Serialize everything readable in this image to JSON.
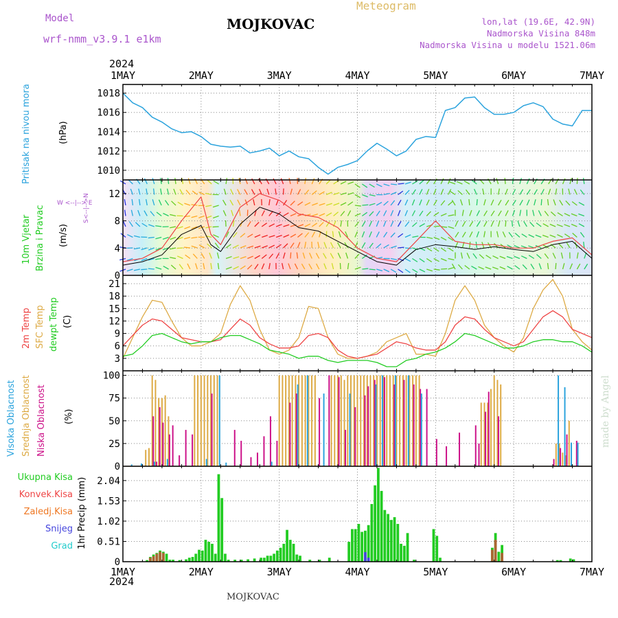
{
  "header": {
    "model_label": "Model",
    "model_name": "wrf-nmm_v3.9.1 e1km",
    "station": "MOJKOVAC",
    "meteogram_label": "Meteogram",
    "lonlat": "lon,lat (19.6E, 42.9N)",
    "altitude": "Nadmorska Visina 848m",
    "altitude_model": "Nadmorska Visina u modelu 1521.06m",
    "footer_station": "MOJKOVAC",
    "watermark": "made by Angel",
    "year_top": "2024",
    "year_bottom": "2024"
  },
  "colors": {
    "pressure": "#2ba3dd",
    "wind_title": "#22cc22",
    "temp2m": "#ee4444",
    "sfc": "#ddaa44",
    "dewpt": "#22cc22",
    "high_cloud": "#2ba3dd",
    "mid_cloud": "#ddaa44",
    "low_cloud": "#cc1188",
    "total_precip": "#22cc22",
    "conv_precip": "#ee4444",
    "freezing": "#ee7722",
    "snow": "#4444dd",
    "hail": "#22cccc",
    "purple": "#aa55cc"
  },
  "chart_data": [
    {
      "type": "line",
      "name": "pressure",
      "ylabel_main": "Pritisak na nivou mora",
      "ylabel_unit": "(hPa)",
      "x_ticks": [
        "1MAY",
        "2MAY",
        "3MAY",
        "4MAY",
        "5MAY",
        "6MAY",
        "7MAY"
      ],
      "y_ticks": [
        1010,
        1012,
        1014,
        1016,
        1018
      ],
      "ylim": [
        1009,
        1018.9
      ],
      "grid": true,
      "x_hours": [
        0,
        3,
        6,
        9,
        12,
        15,
        18,
        21,
        24,
        27,
        30,
        33,
        36,
        39,
        42,
        45,
        48,
        51,
        54,
        57,
        60,
        63,
        66,
        69,
        72,
        75,
        78,
        81,
        84,
        87,
        90,
        93,
        96,
        99,
        102,
        105,
        108,
        111,
        114,
        117,
        120,
        123,
        126,
        129,
        132,
        135,
        138,
        141,
        144
      ],
      "values": [
        1018,
        1017,
        1016.5,
        1015.5,
        1015,
        1014.3,
        1013.9,
        1014,
        1013.5,
        1012.7,
        1012.5,
        1012.4,
        1012.5,
        1011.8,
        1012,
        1012.3,
        1011.5,
        1012,
        1011.4,
        1011.2,
        1010.3,
        1009.6,
        1010.3,
        1010.6,
        1011,
        1012,
        1012.8,
        1012.2,
        1011.5,
        1012,
        1013.2,
        1013.5,
        1013.4,
        1016.2,
        1016.5,
        1017.5,
        1017.6,
        1016.5,
        1015.8,
        1015.8,
        1016,
        1016.7,
        1017,
        1016.6,
        1015.3,
        1014.8,
        1014.6,
        1016.2,
        1016.2
      ]
    },
    {
      "type": "line",
      "name": "wind",
      "ylabel_main": "10m Vjetar",
      "ylabel_sub": "Brzina i Pravac",
      "ylabel_unit": "(m/s)",
      "compass": "W <--|--> E",
      "compass_ns": "S<--|-->N",
      "y_ticks": [
        0,
        4,
        8,
        12
      ],
      "ylim": [
        0,
        14
      ],
      "x_hours": [
        0,
        6,
        12,
        18,
        24,
        27,
        30,
        36,
        42,
        48,
        54,
        60,
        66,
        72,
        78,
        84,
        90,
        96,
        102,
        108,
        114,
        120,
        126,
        132,
        138,
        144
      ],
      "speed": [
        1.5,
        2,
        3,
        6,
        7.3,
        4.5,
        3.5,
        7.5,
        10,
        9,
        7,
        6.5,
        5,
        3.5,
        2,
        1.5,
        3.8,
        4.5,
        4.2,
        3.8,
        4.2,
        3.8,
        3.5,
        4.5,
        5,
        2.5
      ],
      "gust": [
        2,
        2.5,
        4,
        8,
        11.5,
        6,
        4.5,
        10,
        12,
        11,
        9,
        8.5,
        7,
        4,
        2.5,
        2,
        5,
        8,
        5,
        4.5,
        4.5,
        4,
        4,
        5,
        5.5,
        3
      ]
    },
    {
      "type": "line",
      "name": "temperature",
      "ylabel_lines": [
        "2m Temp",
        "SFC Temp",
        "dewpt Temp"
      ],
      "ylabel_unit": "(C)",
      "y_ticks": [
        3,
        6,
        9,
        12,
        15,
        18,
        21
      ],
      "ylim": [
        0,
        23
      ],
      "x_hours": [
        0,
        3,
        6,
        9,
        12,
        15,
        18,
        21,
        24,
        27,
        30,
        33,
        36,
        39,
        42,
        45,
        48,
        51,
        54,
        57,
        60,
        63,
        66,
        69,
        72,
        75,
        78,
        81,
        84,
        87,
        90,
        93,
        96,
        99,
        102,
        105,
        108,
        111,
        114,
        117,
        120,
        123,
        126,
        129,
        132,
        135,
        138,
        141,
        144
      ],
      "temp2m": [
        6,
        8.5,
        11,
        12.5,
        12,
        10,
        8,
        7.5,
        7,
        7,
        7.5,
        10,
        12.5,
        11,
        8,
        6.5,
        5.5,
        5.5,
        6,
        8.5,
        9,
        8,
        5,
        3.5,
        3,
        3.5,
        4,
        5.5,
        7,
        6.5,
        5.5,
        5,
        5,
        7,
        11,
        13,
        12.5,
        10,
        8,
        7,
        6,
        7,
        10,
        13,
        14.5,
        13,
        10,
        9,
        8
      ],
      "sfc": [
        3,
        8,
        13,
        17,
        16.5,
        12,
        8,
        6,
        6,
        7,
        9,
        16,
        20.5,
        17,
        10,
        5,
        4,
        5,
        8,
        15.5,
        15,
        8,
        4,
        3,
        3,
        3.5,
        4.5,
        7,
        8,
        9,
        4,
        4,
        3.5,
        9,
        17,
        20.5,
        17,
        11,
        8,
        6,
        4.5,
        8,
        15,
        19.5,
        22,
        18,
        10,
        7,
        5
      ],
      "dewpt": [
        3.5,
        4,
        6,
        8.5,
        9,
        8,
        7,
        6.5,
        7,
        7,
        8,
        8.5,
        8.5,
        7.5,
        6.5,
        5,
        4.5,
        4,
        3,
        3.5,
        3.5,
        2.5,
        2,
        2.5,
        2.5,
        2.5,
        2,
        1,
        1,
        2.5,
        3,
        4,
        4.5,
        5.5,
        7,
        9,
        8.5,
        7.5,
        6.5,
        5.5,
        5.5,
        6,
        7,
        7.5,
        7.5,
        7,
        7,
        6,
        4.5
      ]
    },
    {
      "type": "bar",
      "name": "clouds",
      "ylabel_lines": [
        "Visoka Oblacnost",
        "Srednja Oblacnost",
        "Niska Oblacnost"
      ],
      "ylabel_unit": "(%)",
      "y_ticks": [
        0,
        25,
        50,
        75,
        100
      ],
      "ylim": [
        0,
        105
      ],
      "bar_width_hours": 0.8,
      "high": [
        [
          3,
          2
        ],
        [
          6,
          3
        ],
        [
          10,
          5
        ],
        [
          14,
          8
        ],
        [
          26,
          8
        ],
        [
          30,
          100
        ],
        [
          32,
          4
        ],
        [
          46,
          5
        ],
        [
          54,
          90
        ],
        [
          57,
          100
        ],
        [
          62,
          80
        ],
        [
          70,
          80
        ],
        [
          78,
          90
        ],
        [
          80,
          100
        ],
        [
          84,
          100
        ],
        [
          88,
          100
        ],
        [
          92,
          80
        ],
        [
          134,
          100
        ],
        [
          136,
          87
        ],
        [
          138,
          26
        ],
        [
          140,
          26
        ]
      ],
      "mid": [
        [
          7,
          18
        ],
        [
          8,
          20
        ],
        [
          9,
          100
        ],
        [
          10,
          95
        ],
        [
          11,
          75
        ],
        [
          12,
          75
        ],
        [
          13,
          78
        ],
        [
          14,
          55
        ],
        [
          22,
          100
        ],
        [
          23,
          100
        ],
        [
          24,
          100
        ],
        [
          25,
          100
        ],
        [
          26,
          100
        ],
        [
          27,
          100
        ],
        [
          28,
          100
        ],
        [
          29,
          100
        ],
        [
          48,
          100
        ],
        [
          49,
          100
        ],
        [
          50,
          100
        ],
        [
          51,
          100
        ],
        [
          52,
          100
        ],
        [
          53,
          100
        ],
        [
          54,
          100
        ],
        [
          55,
          100
        ],
        [
          56,
          100
        ],
        [
          57,
          100
        ],
        [
          58,
          100
        ],
        [
          59,
          100
        ],
        [
          64,
          100
        ],
        [
          65,
          100
        ],
        [
          66,
          100
        ],
        [
          67,
          100
        ],
        [
          68,
          95
        ],
        [
          69,
          100
        ],
        [
          70,
          100
        ],
        [
          71,
          100
        ],
        [
          72,
          100
        ],
        [
          73,
          100
        ],
        [
          74,
          100
        ],
        [
          75,
          100
        ],
        [
          76,
          100
        ],
        [
          77,
          100
        ],
        [
          78,
          100
        ],
        [
          79,
          100
        ],
        [
          80,
          100
        ],
        [
          81,
          100
        ],
        [
          82,
          100
        ],
        [
          83,
          100
        ],
        [
          84,
          100
        ],
        [
          85,
          100
        ],
        [
          86,
          100
        ],
        [
          87,
          100
        ],
        [
          88,
          100
        ],
        [
          89,
          100
        ],
        [
          90,
          100
        ],
        [
          91,
          100
        ],
        [
          110,
          70
        ],
        [
          111,
          70
        ],
        [
          112,
          70
        ],
        [
          113,
          85
        ],
        [
          114,
          100
        ],
        [
          115,
          95
        ],
        [
          116,
          90
        ],
        [
          133,
          25
        ],
        [
          134,
          25
        ],
        [
          135,
          15
        ],
        [
          136,
          12
        ],
        [
          137,
          50
        ]
      ],
      "low": [
        [
          9,
          55
        ],
        [
          10,
          5
        ],
        [
          11,
          65
        ],
        [
          12,
          48
        ],
        [
          14,
          35
        ],
        [
          15,
          45
        ],
        [
          17,
          12
        ],
        [
          19,
          40
        ],
        [
          21,
          35
        ],
        [
          27,
          80
        ],
        [
          34,
          40
        ],
        [
          36,
          28
        ],
        [
          39,
          10
        ],
        [
          41,
          15
        ],
        [
          43,
          33
        ],
        [
          45,
          55
        ],
        [
          47,
          28
        ],
        [
          51,
          70
        ],
        [
          53,
          80
        ],
        [
          60,
          75
        ],
        [
          63,
          100
        ],
        [
          66,
          98
        ],
        [
          68,
          40
        ],
        [
          71,
          65
        ],
        [
          74,
          78
        ],
        [
          75,
          88
        ],
        [
          77,
          95
        ],
        [
          80,
          98
        ],
        [
          83,
          90
        ],
        [
          86,
          95
        ],
        [
          89,
          90
        ],
        [
          91,
          85
        ],
        [
          93,
          85
        ],
        [
          96,
          30
        ],
        [
          99,
          22
        ],
        [
          103,
          37
        ],
        [
          108,
          45
        ],
        [
          109,
          25
        ],
        [
          111,
          60
        ],
        [
          112,
          82
        ],
        [
          115,
          55
        ],
        [
          132,
          8
        ],
        [
          134,
          20
        ],
        [
          136,
          35
        ],
        [
          139,
          28
        ]
      ]
    },
    {
      "type": "bar",
      "name": "precipitation",
      "legend": [
        "Ukupna Kisa",
        "Konvek.Kisa",
        "Zaledj.Kisa",
        "Snijeg",
        "Grad"
      ],
      "ylabel": "1hr Precip (mm)",
      "y_ticks": [
        0,
        0.51,
        1.02,
        1.53,
        2.04
      ],
      "ylim": [
        0,
        2.4
      ],
      "x_ticks": [
        "1MAY",
        "2MAY",
        "3MAY",
        "4MAY",
        "5MAY",
        "6MAY",
        "7MAY"
      ],
      "total": [
        [
          7,
          0.04
        ],
        [
          8,
          0.12
        ],
        [
          9,
          0.18
        ],
        [
          10,
          0.22
        ],
        [
          11,
          0.28
        ],
        [
          12,
          0.25
        ],
        [
          13,
          0.2
        ],
        [
          14,
          0.05
        ],
        [
          15,
          0.05
        ],
        [
          17,
          0.04
        ],
        [
          19,
          0.06
        ],
        [
          20,
          0.1
        ],
        [
          21,
          0.12
        ],
        [
          22,
          0.2
        ],
        [
          23,
          0.3
        ],
        [
          24,
          0.28
        ],
        [
          25,
          0.55
        ],
        [
          26,
          0.5
        ],
        [
          27,
          0.45
        ],
        [
          28,
          0.2
        ],
        [
          29,
          2.2
        ],
        [
          30,
          1.6
        ],
        [
          31,
          0.2
        ],
        [
          32,
          0.05
        ],
        [
          34,
          0.05
        ],
        [
          36,
          0.05
        ],
        [
          38,
          0.06
        ],
        [
          40,
          0.08
        ],
        [
          42,
          0.1
        ],
        [
          43,
          0.1
        ],
        [
          44,
          0.15
        ],
        [
          45,
          0.15
        ],
        [
          46,
          0.2
        ],
        [
          47,
          0.28
        ],
        [
          48,
          0.35
        ],
        [
          49,
          0.45
        ],
        [
          50,
          0.8
        ],
        [
          51,
          0.55
        ],
        [
          52,
          0.45
        ],
        [
          53,
          0.18
        ],
        [
          54,
          0.15
        ],
        [
          57,
          0.05
        ],
        [
          60,
          0.05
        ],
        [
          63,
          0.1
        ],
        [
          69,
          0.5
        ],
        [
          70,
          0.82
        ],
        [
          71,
          0.82
        ],
        [
          72,
          0.95
        ],
        [
          73,
          0.75
        ],
        [
          74,
          0.78
        ],
        [
          75,
          0.92
        ],
        [
          76,
          1.45
        ],
        [
          77,
          1.92
        ],
        [
          78,
          2.36
        ],
        [
          79,
          1.78
        ],
        [
          80,
          1.3
        ],
        [
          81,
          1.2
        ],
        [
          82,
          1.05
        ],
        [
          83,
          1.12
        ],
        [
          84,
          0.95
        ],
        [
          85,
          0.45
        ],
        [
          86,
          0.4
        ],
        [
          87,
          0.72
        ],
        [
          89,
          0.05
        ],
        [
          95,
          0.82
        ],
        [
          96,
          0.65
        ],
        [
          97,
          0.1
        ],
        [
          113,
          0.35
        ],
        [
          114,
          0.72
        ],
        [
          115,
          0.25
        ],
        [
          116,
          0.42
        ],
        [
          133,
          0.04
        ],
        [
          134,
          0.04
        ],
        [
          137,
          0.08
        ],
        [
          138,
          0.06
        ]
      ],
      "conv": [
        [
          8,
          0.1
        ],
        [
          9,
          0.14
        ],
        [
          10,
          0.2
        ],
        [
          11,
          0.25
        ],
        [
          12,
          0.22
        ],
        [
          113,
          0.3
        ],
        [
          114,
          0.55
        ],
        [
          116,
          0.22
        ]
      ],
      "snow": [
        [
          74,
          0.24
        ],
        [
          75,
          0.1
        ]
      ]
    }
  ]
}
